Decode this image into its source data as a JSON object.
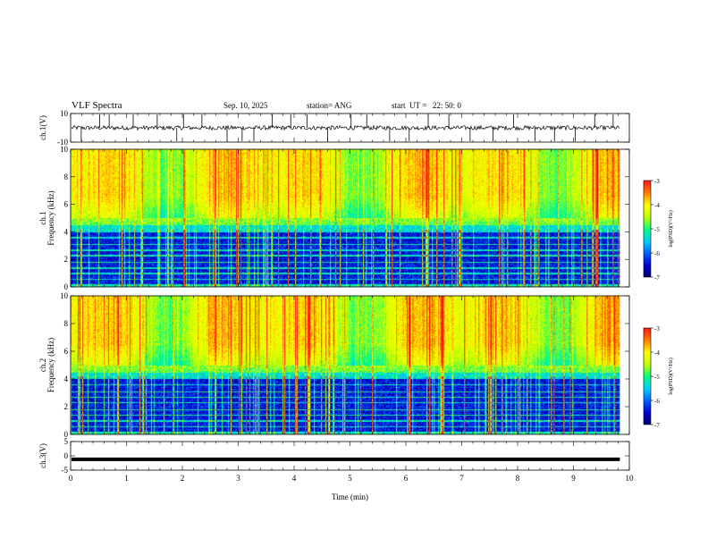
{
  "header": {
    "title": "VLF Spectra",
    "date": "Sep. 10, 2025",
    "station": "station= ANG",
    "start": "start  UT =   22: 50: 0"
  },
  "chart_data": [
    {
      "type": "line",
      "name": "ch1-waveform",
      "ylabel": "ch.1(V)",
      "ylim": [
        -10,
        10
      ],
      "yticks": [
        10,
        -10
      ],
      "xlim": [
        0,
        10
      ],
      "x_end": 9.83,
      "baseline": 0,
      "spikes": [
        0.19,
        0.52,
        0.69,
        1.12,
        1.55,
        1.9,
        2.02,
        2.35,
        2.8,
        3.07,
        3.28,
        3.61,
        3.94,
        4.23,
        4.6,
        5.02,
        5.3,
        5.71,
        6.06,
        6.4,
        6.77,
        7.15,
        7.56,
        7.93,
        8.31,
        8.66,
        9.03,
        9.38,
        9.71
      ]
    },
    {
      "type": "heatmap",
      "name": "ch1-spectrogram",
      "ylabel": "Frequency (kHz)",
      "channel_label": "ch.1",
      "ylim": [
        0,
        10
      ],
      "yticks": [
        0,
        2,
        4,
        6,
        8,
        10
      ],
      "xlim": [
        0,
        10
      ],
      "x_end": 9.83,
      "color_range": [
        -7,
        -3
      ],
      "colorbar_ticks": [
        -3,
        -4,
        -5,
        -6,
        -7
      ],
      "colorbar_label": "log(PSD)(V²/Hz)",
      "colormap": [
        "#000070",
        "#0000d0",
        "#0060ff",
        "#00d0ff",
        "#00ff80",
        "#c0ff00",
        "#ffff00",
        "#ff8000",
        "#ff1a1a"
      ]
    },
    {
      "type": "heatmap",
      "name": "ch2-spectrogram",
      "ylabel": "Frequency (kHz)",
      "channel_label": "ch.2",
      "ylim": [
        0,
        10
      ],
      "yticks": [
        0,
        2,
        4,
        6,
        8,
        10
      ],
      "xlim": [
        0,
        10
      ],
      "x_end": 9.83,
      "color_range": [
        -7,
        -3
      ],
      "colorbar_ticks": [
        -3,
        -4,
        -5,
        -6,
        -7
      ],
      "colorbar_label": "log(PSD)(V²/Hz)"
    },
    {
      "type": "line",
      "name": "ch3-level",
      "ylabel": "ch.3(V)",
      "ylim": [
        -5,
        5
      ],
      "yticks": [
        5,
        0,
        -5
      ],
      "xlim": [
        0,
        10
      ],
      "x_end": 9.83,
      "level": -1.2,
      "xlabel": "Time (min)",
      "xticks": [
        0,
        1,
        2,
        3,
        4,
        5,
        6,
        7,
        8,
        9,
        10
      ]
    }
  ]
}
